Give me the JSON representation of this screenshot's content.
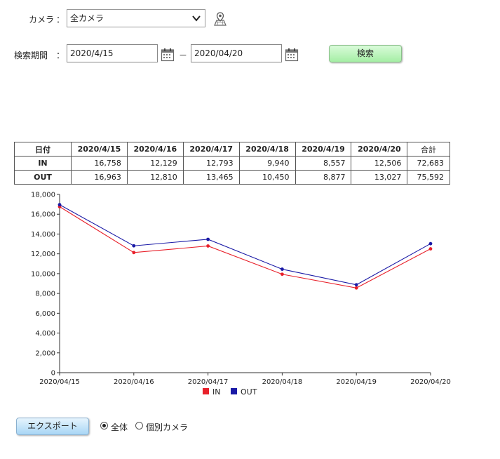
{
  "filters": {
    "camera_label": "カメラ",
    "colon": "：",
    "camera_value": "全カメラ",
    "period_label": "検索期間",
    "date_from": "2020/4/15",
    "date_to": "2020/04/20",
    "range_sep": "－",
    "search_label": "検索"
  },
  "table": {
    "header": [
      "日付",
      "2020/4/15",
      "2020/4/16",
      "2020/4/17",
      "2020/4/18",
      "2020/4/19",
      "2020/4/20",
      "合計"
    ],
    "rows": [
      {
        "label": "IN",
        "values": [
          "16,758",
          "12,129",
          "12,793",
          "9,940",
          "8,557",
          "12,506",
          "72,683"
        ]
      },
      {
        "label": "OUT",
        "values": [
          "16,963",
          "12,810",
          "13,465",
          "10,450",
          "8,877",
          "13,027",
          "75,592"
        ]
      }
    ]
  },
  "chart_data": {
    "type": "line",
    "x": [
      "2020/04/15",
      "2020/04/16",
      "2020/04/17",
      "2020/04/18",
      "2020/04/19",
      "2020/04/20"
    ],
    "series": [
      {
        "name": "IN",
        "color": "#e8202a",
        "values": [
          16758,
          12129,
          12793,
          9940,
          8557,
          12506
        ]
      },
      {
        "name": "OUT",
        "color": "#1a1aa6",
        "values": [
          16963,
          12810,
          13465,
          10450,
          8877,
          13027
        ]
      }
    ],
    "yticks": [
      "0",
      "2,000",
      "4,000",
      "6,000",
      "8,000",
      "10,000",
      "12,000",
      "14,000",
      "16,000",
      "18,000"
    ],
    "ylim": [
      0,
      18000
    ],
    "grid": false,
    "legend": "bottom-center"
  },
  "footer": {
    "export_label": "エクスポート",
    "radio_all": "全体",
    "radio_each": "個別カメラ"
  }
}
